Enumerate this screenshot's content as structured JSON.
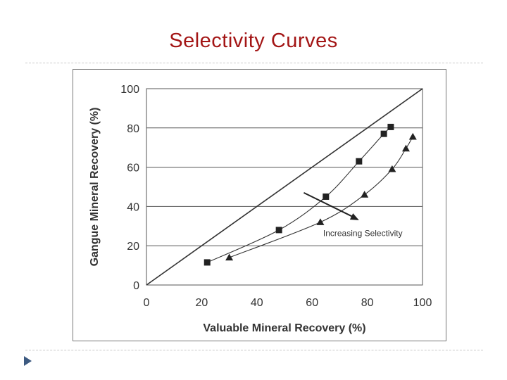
{
  "slide": {
    "title": "Selectivity Curves"
  },
  "colors": {
    "title": "#a31515",
    "ink": "#333333",
    "grid": "#555555",
    "bullet": "#3d5a80"
  },
  "chart_data": {
    "type": "line",
    "title": "",
    "xlabel": "Valuable Mineral Recovery (%)",
    "ylabel": "Gangue Mineral Recovery (%)",
    "xlim": [
      0,
      100
    ],
    "ylim": [
      0,
      100
    ],
    "grid": true,
    "x_ticks": [
      "0",
      "20",
      "40",
      "60",
      "80",
      "100"
    ],
    "y_ticks": [
      "0",
      "20",
      "40",
      "60",
      "80",
      "100"
    ],
    "reference_line": {
      "name": "diagonal",
      "x": [
        0,
        100
      ],
      "y": [
        0,
        100
      ]
    },
    "series": [
      {
        "name": "squares",
        "marker": "square",
        "x": [
          22,
          48,
          65,
          77,
          86,
          88.5
        ],
        "y": [
          11.5,
          28,
          45,
          63,
          77,
          80.5
        ]
      },
      {
        "name": "triangles",
        "marker": "triangle",
        "x": [
          30,
          63,
          79,
          89,
          94,
          96.5
        ],
        "y": [
          14,
          32,
          46,
          59,
          69.5,
          75.5
        ]
      }
    ],
    "annotation": {
      "text": "Increasing Selectivity",
      "arrow_from": [
        57,
        47
      ],
      "arrow_to": [
        77,
        33
      ],
      "text_at": [
        64,
        25
      ]
    }
  }
}
